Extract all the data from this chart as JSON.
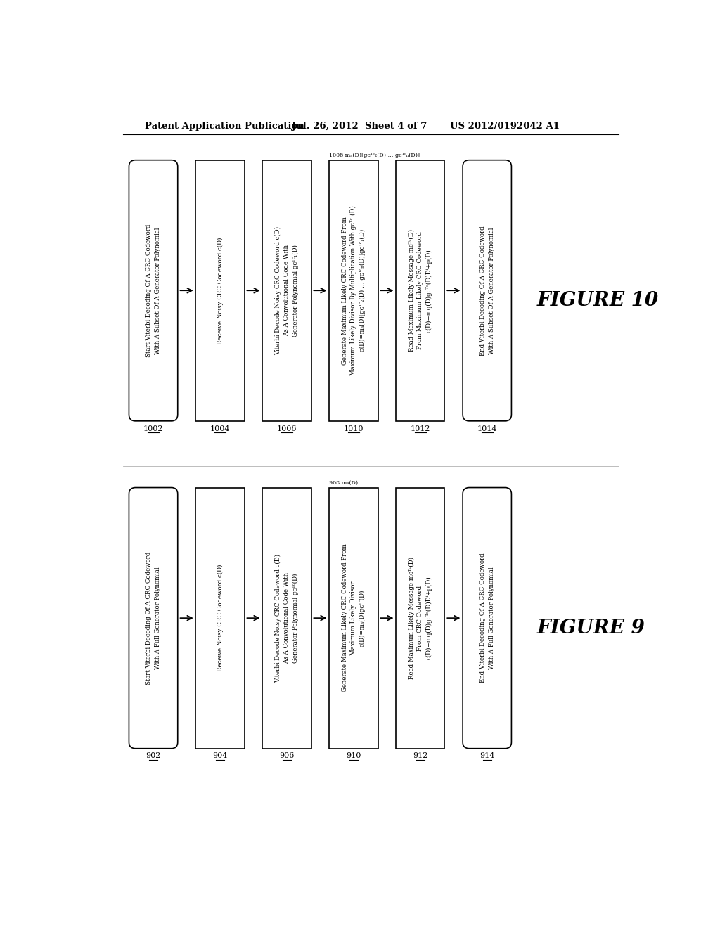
{
  "header_left": "Patent Application Publication",
  "header_mid": "Jul. 26, 2012  Sheet 4 of 7",
  "header_right": "US 2012/0192042 A1",
  "fig10": {
    "title": "FIGURE 10",
    "note_box3": "1008 mₐ(D)[gᴄᵀᶜ₂(D) … gᴄᵀᶜₙ(D)]",
    "boxes": [
      {
        "shape": "rounded",
        "text": "Start Viterbi Decoding Of A CRC Codeword\nWith A Subset Of A Generator Polynomial",
        "num": "1002"
      },
      {
        "shape": "rect",
        "text": "Receive Noisy CRC Codeword c(D)",
        "num": "1004"
      },
      {
        "shape": "rect",
        "text": "Viterbi Decode Noisy CRC Codeword c(D)\nAs A Convolutional Code With\nGenerator Polynomial gᴄᵀᶜ₁(D)",
        "num": "1006"
      },
      {
        "shape": "rect",
        "text": "Generate Maximum Likely CRC Codeword From\nMaximum Likely Divisor By Multiplication With gᴄᵀᶜ₁(D)\nc(D)=mₐ(D)[gᴄᵀᶜ₂(D) … gᴄᵀᶜₙ(D)]gᴄᵀᶜ₁(D)",
        "num": "1010",
        "has_note": true
      },
      {
        "shape": "rect",
        "text": "Read Maximum Likely Message mᴄᵀᶜ(D)\nFrom Maximum Likely CRC Codeword\nc(D)=mq(D)gᴄᵀᶜ(D)Dⁱ+p(D)",
        "num": "1012"
      },
      {
        "shape": "rounded",
        "text": "End Viterbi Decoding Of A CRC Codeword\nWith A Subset Of A Generator Polynomial",
        "num": "1014"
      }
    ]
  },
  "fig9": {
    "title": "FIGURE 9",
    "note_box3": "908 mₐ(D)",
    "boxes": [
      {
        "shape": "rounded",
        "text": "Start Viterbi Decoding Of A CRC Codeword\nWith A Full Generator Polynomial",
        "num": "902"
      },
      {
        "shape": "rect",
        "text": "Receive Noisy CRC Codeword c(D)",
        "num": "904"
      },
      {
        "shape": "rect",
        "text": "Viterbi Decode Noisy CRC Codeword c(D)\nAs A Convolutional Code With\nGenerator Polynomial gᴄᵀᶜ(D)",
        "num": "906"
      },
      {
        "shape": "rect",
        "text": "Generate Maximum Likely CRC Codeword From\nMaximum Likely Divisor\nc(D)=mₐ(D)gᴄᵀᶜ(D)",
        "num": "910",
        "has_note": true
      },
      {
        "shape": "rect",
        "text": "Read Maximum Likely Message mᴄᵀᶜ(D)\nFrom CRC Codeword\nc(D)=mq(D)gᴄᵀᶜ(D)Dⁱ+p(D)",
        "num": "912"
      },
      {
        "shape": "rounded",
        "text": "End Viterbi Decoding Of A CRC Codeword\nWith A Full Generator Polynomial",
        "num": "914"
      }
    ]
  }
}
